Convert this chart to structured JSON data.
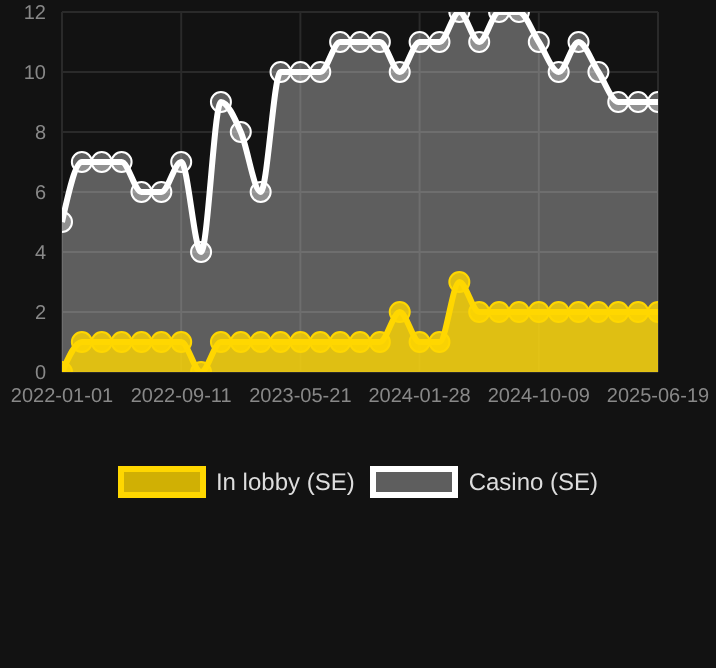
{
  "chart_data": {
    "type": "area",
    "categories": [
      "2022-01-01",
      null,
      null,
      null,
      null,
      null,
      "2022-09-11",
      null,
      null,
      null,
      null,
      null,
      "2023-05-21",
      null,
      null,
      null,
      null,
      null,
      "2024-01-28",
      null,
      null,
      null,
      null,
      null,
      "2024-10-09",
      null,
      null,
      null,
      null,
      null,
      "2025-06-19"
    ],
    "series": [
      {
        "name": "In lobby (SE)",
        "color": "#ffd700",
        "values": [
          0,
          1,
          1,
          1,
          1,
          1,
          1,
          0,
          1,
          1,
          1,
          1,
          1,
          1,
          1,
          1,
          1,
          2,
          1,
          1,
          3,
          2,
          2,
          2,
          2,
          2,
          2,
          2,
          2,
          2,
          2
        ]
      },
      {
        "name": "Casino (SE)",
        "color": "#ffffff",
        "values": [
          5,
          7,
          7,
          7,
          6,
          6,
          7,
          4,
          9,
          8,
          6,
          10,
          10,
          10,
          11,
          11,
          11,
          10,
          11,
          11,
          12,
          11,
          12,
          12,
          11,
          10,
          11,
          10,
          9,
          9,
          9
        ]
      }
    ],
    "ylim": [
      0,
      12
    ],
    "yticks": [
      0,
      2,
      4,
      6,
      8,
      10,
      12
    ],
    "grid": true,
    "legend": "bottom",
    "marker": "circle",
    "line_style": "solid"
  }
}
